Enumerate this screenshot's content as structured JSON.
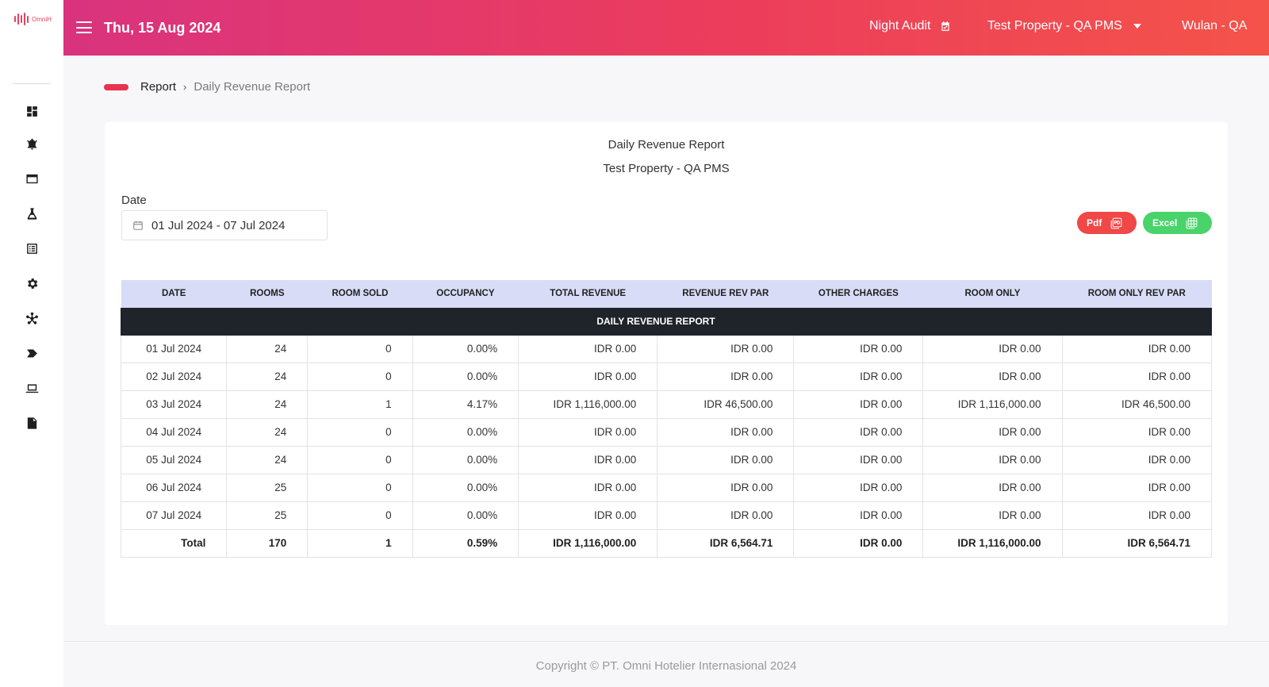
{
  "brand": {
    "logo_text": "OmniH"
  },
  "sidebar": {
    "icons": [
      "dashboard-icon",
      "bell-icon",
      "window-icon",
      "flask-icon",
      "list-icon",
      "settings-icon",
      "network-icon",
      "tag-icon",
      "laptop-icon",
      "document-icon"
    ]
  },
  "header": {
    "date": "Thu, 15 Aug 2024",
    "night_audit": "Night Audit",
    "property": "Test Property - QA PMS",
    "user": "Wulan - QA"
  },
  "breadcrumb": {
    "parent": "Report",
    "separator": "›",
    "current": "Daily Revenue Report"
  },
  "report": {
    "title": "Daily Revenue Report",
    "property": "Test Property - QA PMS",
    "date_label": "Date",
    "date_value": "01 Jul 2024 - 07 Jul 2024",
    "pdf_label": "Pdf",
    "excel_label": "Excel",
    "colors": {
      "pdf": "#f04747",
      "excel": "#49d36a",
      "header_accent": "#ec3d5c"
    }
  },
  "table": {
    "caption": "DAILY REVENUE REPORT",
    "headers": [
      "DATE",
      "ROOMS",
      "ROOM SOLD",
      "OCCUPANCY",
      "TOTAL REVENUE",
      "REVENUE REV PAR",
      "OTHER CHARGES",
      "ROOM ONLY",
      "ROOM ONLY REV PAR"
    ],
    "rows": [
      [
        "01 Jul 2024",
        "24",
        "0",
        "0.00%",
        "IDR 0.00",
        "IDR 0.00",
        "IDR 0.00",
        "IDR 0.00",
        "IDR 0.00"
      ],
      [
        "02 Jul 2024",
        "24",
        "0",
        "0.00%",
        "IDR 0.00",
        "IDR 0.00",
        "IDR 0.00",
        "IDR 0.00",
        "IDR 0.00"
      ],
      [
        "03 Jul 2024",
        "24",
        "1",
        "4.17%",
        "IDR 1,116,000.00",
        "IDR 46,500.00",
        "IDR 0.00",
        "IDR 1,116,000.00",
        "IDR 46,500.00"
      ],
      [
        "04 Jul 2024",
        "24",
        "0",
        "0.00%",
        "IDR 0.00",
        "IDR 0.00",
        "IDR 0.00",
        "IDR 0.00",
        "IDR 0.00"
      ],
      [
        "05 Jul 2024",
        "24",
        "0",
        "0.00%",
        "IDR 0.00",
        "IDR 0.00",
        "IDR 0.00",
        "IDR 0.00",
        "IDR 0.00"
      ],
      [
        "06 Jul 2024",
        "25",
        "0",
        "0.00%",
        "IDR 0.00",
        "IDR 0.00",
        "IDR 0.00",
        "IDR 0.00",
        "IDR 0.00"
      ],
      [
        "07 Jul 2024",
        "25",
        "0",
        "0.00%",
        "IDR 0.00",
        "IDR 0.00",
        "IDR 0.00",
        "IDR 0.00",
        "IDR 0.00"
      ]
    ],
    "total": [
      "Total",
      "170",
      "1",
      "0.59%",
      "IDR 1,116,000.00",
      "IDR 6,564.71",
      "IDR 0.00",
      "IDR 1,116,000.00",
      "IDR 6,564.71"
    ]
  },
  "footer": {
    "copyright": "Copyright © PT. Omni Hotelier Internasional 2024"
  }
}
